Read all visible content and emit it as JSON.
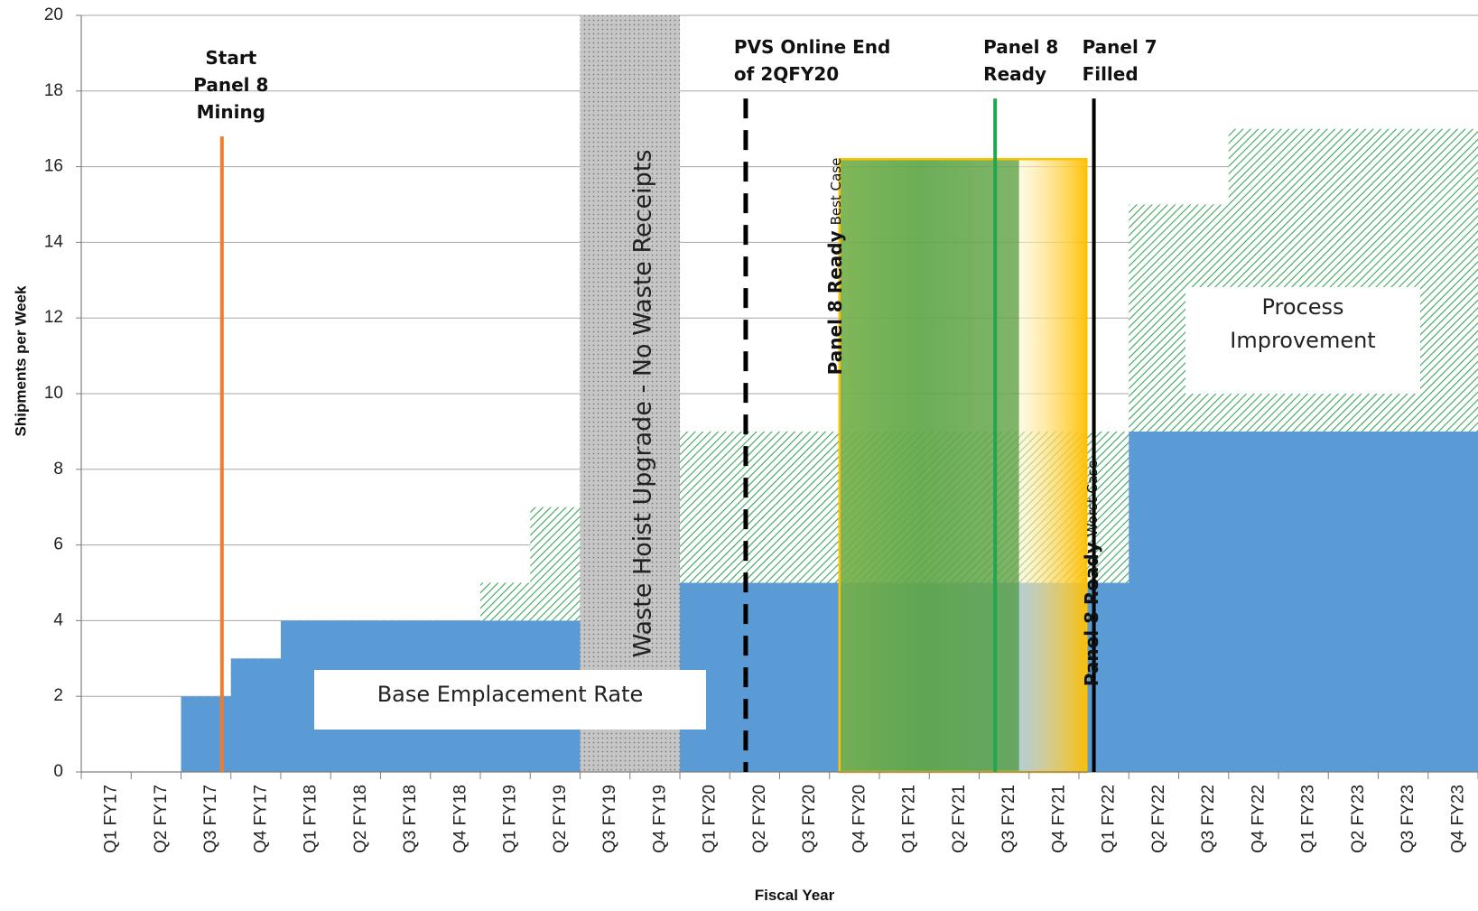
{
  "chart_data": {
    "type": "area",
    "title": "",
    "xlabel": "Fiscal Year",
    "ylabel": "Shipments per Week",
    "ylim": [
      0,
      20
    ],
    "yticks": [
      0,
      2,
      4,
      6,
      8,
      10,
      12,
      14,
      16,
      18,
      20
    ],
    "grid": true,
    "categories": [
      "Q1 FY17",
      "Q2 FY17",
      "Q3 FY17",
      "Q4 FY17",
      "Q1 FY18",
      "Q2 FY18",
      "Q3 FY18",
      "Q4 FY18",
      "Q1 FY19",
      "Q2 FY19",
      "Q3 FY19",
      "Q4 FY19",
      "Q1 FY20",
      "Q2 FY20",
      "Q3 FY20",
      "Q4 FY20",
      "Q1 FY21",
      "Q2 FY21",
      "Q3 FY21",
      "Q4 FY21",
      "Q1 FY22",
      "Q2 FY22",
      "Q3 FY22",
      "Q4 FY22",
      "Q1 FY23",
      "Q2 FY23",
      "Q3 FY23",
      "Q4 FY23"
    ],
    "series": [
      {
        "name": "Base Emplacement Rate",
        "color": "#5b9bd5",
        "values": [
          0,
          0,
          2,
          3,
          4,
          4,
          4,
          4,
          4,
          4,
          0,
          0,
          5,
          5,
          5,
          5,
          5,
          5,
          5,
          5,
          5,
          9,
          9,
          9,
          9,
          9,
          9,
          9
        ]
      },
      {
        "name": "Process Improvement",
        "color": "#5cb87a",
        "values": [
          0,
          0,
          2,
          3,
          4,
          4,
          4,
          4,
          5,
          7,
          0,
          0,
          9,
          9,
          9,
          9,
          9,
          9,
          9,
          9,
          9,
          15,
          15,
          17,
          17,
          17,
          17,
          17
        ]
      }
    ],
    "boxes": {
      "base_label": "Base Emplacement Rate",
      "process_label_line1": "Process",
      "process_label_line2": "Improvement",
      "hoist_label": "Waste Hoist Upgrade - No Waste Receipts",
      "hoist_color": "#c8c8c8"
    },
    "annotations": [
      {
        "id": "start-panel8",
        "lines": [
          "Start",
          "Panel 8",
          "Mining"
        ],
        "x": 2.82,
        "y_top": 16.8,
        "color": "#ed7d31",
        "style": "solid"
      },
      {
        "id": "pvs-online",
        "lines": [
          "PVS Online End",
          "of 2QFY20"
        ],
        "x": 13.32,
        "y_top": 17.8,
        "color": "#000000",
        "style": "dashed"
      },
      {
        "id": "panel8-ready",
        "lines": [
          "Panel 8",
          "Ready"
        ],
        "x": 18.32,
        "y_top": 17.8,
        "color": "#21a750",
        "style": "solid"
      },
      {
        "id": "panel7-filled",
        "lines": [
          "Panel 7",
          "Filled"
        ],
        "x": 20.3,
        "y_top": 17.8,
        "color": "#000000",
        "style": "solid"
      }
    ],
    "readiness_window": {
      "best_case_bold": "Panel 8 Ready",
      "best_case_sub": "Best Case",
      "worst_case_bold": "Panel 8 Ready",
      "worst_case_sub": "Worst Case",
      "green_color": "#70ad47",
      "gold_color": "#ffc000",
      "y_top": 16.2
    }
  }
}
